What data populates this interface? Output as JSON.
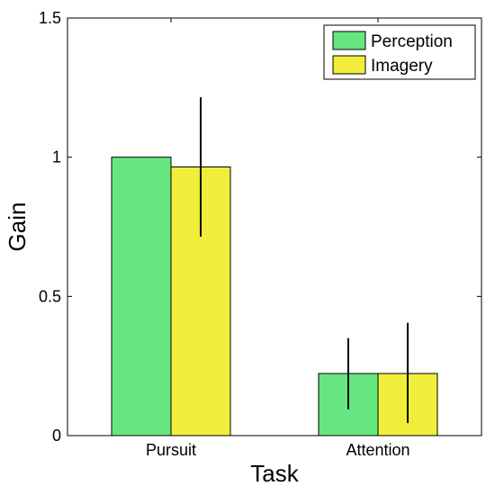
{
  "chart_data": {
    "type": "bar",
    "xlabel": "Task",
    "ylabel": "Gain",
    "categories": [
      "Pursuit",
      "Attention"
    ],
    "ylim": [
      0,
      1.5
    ],
    "yticks": [
      "0",
      "0.5",
      "1",
      "1.5"
    ],
    "legend_position": "top-right",
    "grid": false,
    "series": [
      {
        "name": "Perception",
        "color": "#66e680",
        "values": [
          1.0,
          0.223
        ],
        "error_low": [
          null,
          0.095
        ],
        "error_high": [
          null,
          0.35
        ]
      },
      {
        "name": "Imagery",
        "color": "#f0ee3a",
        "values": [
          0.965,
          0.223
        ],
        "error_low": [
          0.715,
          0.045
        ],
        "error_high": [
          1.215,
          0.405
        ]
      }
    ]
  }
}
